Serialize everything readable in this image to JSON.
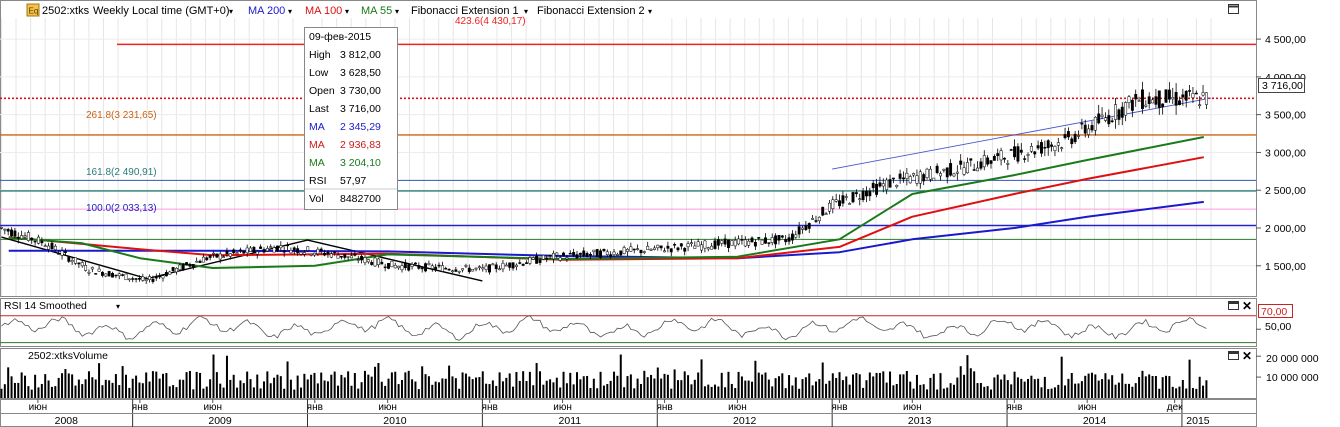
{
  "toolbar": {
    "instrument": "2502:xtks",
    "period": "Weekly",
    "timezone": "Local time (GMT+0)",
    "ma1": "MA 200",
    "ma2": "MA 100",
    "ma3": "MA 55",
    "fib1": "Fibonacci Extension 1",
    "fib2": "Fibonacci Extension 2",
    "eq_icon": "Eq"
  },
  "tooltip": {
    "date": "09-фев-2015",
    "rows": [
      {
        "label": "High",
        "value": "3 812,00",
        "color": "#000000"
      },
      {
        "label": "Low",
        "value": "3 628,50",
        "color": "#000000"
      },
      {
        "label": "Open",
        "value": "3 730,00",
        "color": "#000000"
      },
      {
        "label": "Last",
        "value": "3 716,00",
        "color": "#000000"
      },
      {
        "label": "MA",
        "value": "2 345,29",
        "color": "#1a1acc"
      },
      {
        "label": "MA",
        "value": "2 936,83",
        "color": "#cc1a1a"
      },
      {
        "label": "MA",
        "value": "3 204,10",
        "color": "#1a7a1a"
      },
      {
        "label": "RSI",
        "value": "57,97",
        "color": "#000000"
      },
      {
        "label": "Vol",
        "value": "8482700",
        "color": "#000000"
      }
    ]
  },
  "fib_labels": {
    "f423": "423.6(4 430,17)",
    "f261": "261.8(3 231,65)",
    "f161": "161.8(2 490,91)",
    "f100": "100.0(2 033,13)"
  },
  "price_axis": [
    "4 500,00",
    "4 000,00",
    "3 500,00",
    "3 000,00",
    "2 500,00",
    "2 000,00",
    "1 500,00"
  ],
  "last_price_label": "3 716,00",
  "rsi_panel": {
    "title": "RSI 14 Smoothed",
    "level_label": "70,00",
    "ticks": [
      "50,00"
    ]
  },
  "volume_panel": {
    "title": "2502:xtksVolume",
    "ticks": [
      "20 000 000",
      "10 000 000"
    ]
  },
  "month_labels": [
    "июн",
    "янв",
    "июн",
    "янв",
    "июн",
    "янв",
    "июн",
    "янв",
    "июн",
    "янв",
    "июн",
    "янв",
    "июн",
    "дек"
  ],
  "year_labels": [
    "2008",
    "2009",
    "2010",
    "2011",
    "2012",
    "2013",
    "2014",
    "2015"
  ],
  "colors": {
    "up": "#ffffff",
    "down": "#000000",
    "ma200": "#1a1acc",
    "ma100": "#dd1111",
    "ma55": "#1a7a1a",
    "fib_red": "#ee2222",
    "fib_orange": "#c86414",
    "fib_teal": "#2a7a7a",
    "fib_blue": "#2222cc"
  },
  "chart_data": {
    "type": "line",
    "title": "2502:xtks Weekly",
    "x_range": [
      "2008-04",
      "2015-02"
    ],
    "ylim": [
      1100,
      4700
    ],
    "ma200": {
      "x": [
        "2008-04",
        "2009-06",
        "2010-06",
        "2011-06",
        "2012-06",
        "2013-01",
        "2013-06",
        "2014-01",
        "2014-06",
        "2015-02"
      ],
      "values": [
        1700,
        1700,
        1690,
        1630,
        1600,
        1680,
        1850,
        2000,
        2150,
        2345
      ]
    },
    "ma100": {
      "x": [
        "2008-04",
        "2009-01",
        "2009-06",
        "2010-06",
        "2011-06",
        "2012-06",
        "2013-01",
        "2013-06",
        "2014-01",
        "2014-06",
        "2015-02"
      ],
      "values": [
        1880,
        1720,
        1640,
        1660,
        1580,
        1600,
        1750,
        2150,
        2450,
        2650,
        2937
      ]
    },
    "ma55": {
      "x": [
        "2008-04",
        "2008-09",
        "2009-01",
        "2009-06",
        "2010-01",
        "2010-06",
        "2011-06",
        "2012-06",
        "2013-01",
        "2013-06",
        "2014-01",
        "2014-06",
        "2015-02"
      ],
      "values": [
        1870,
        1800,
        1600,
        1470,
        1500,
        1650,
        1590,
        1620,
        1850,
        2450,
        2700,
        2900,
        3204
      ]
    },
    "price_series": {
      "x": [
        "2008-04",
        "2008-07",
        "2008-10",
        "2009-02",
        "2009-06",
        "2009-11",
        "2010-03",
        "2010-07",
        "2011-01",
        "2011-06",
        "2012-01",
        "2012-06",
        "2012-10",
        "2013-01",
        "2013-05",
        "2013-10",
        "2014-01",
        "2014-05",
        "2014-10",
        "2015-02"
      ],
      "values": [
        2000,
        1800,
        1450,
        1300,
        1600,
        1750,
        1650,
        1500,
        1450,
        1620,
        1720,
        1800,
        1850,
        2300,
        2600,
        2800,
        2950,
        3150,
        3700,
        3716
      ]
    },
    "fibonacci_levels": [
      {
        "label": "423.6",
        "value": 4430.17
      },
      {
        "label": "261.8",
        "value": 3231.65
      },
      {
        "label": "161.8",
        "value": 2490.91
      },
      {
        "label": "100.0",
        "value": 2033.13
      }
    ],
    "last_price": 3716,
    "rsi": {
      "period": 14,
      "upper_level": 70,
      "lower_tick": 50,
      "last": 57.97
    },
    "volume": {
      "last": 8482700,
      "ymax": 22000000
    }
  }
}
